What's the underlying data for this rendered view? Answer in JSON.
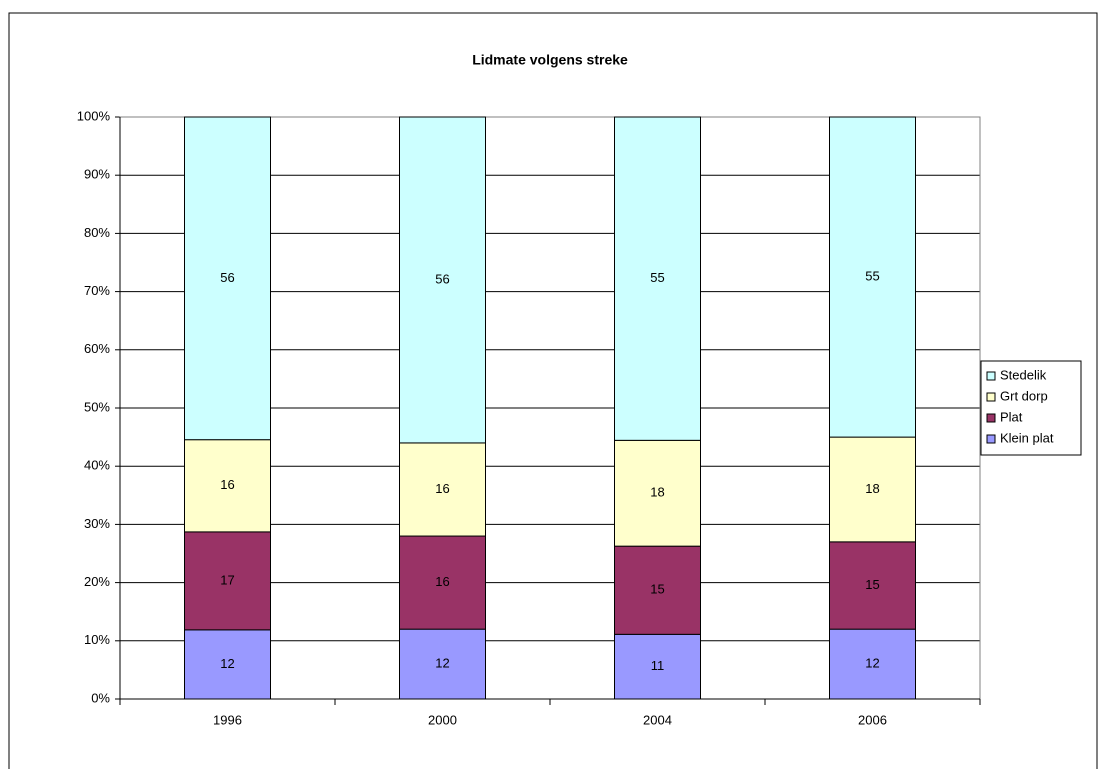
{
  "chart_data": {
    "type": "bar",
    "stacking": "percent",
    "title": "Lidmate volgens streke",
    "categories": [
      "1996",
      "2000",
      "2004",
      "2006"
    ],
    "series": [
      {
        "name": "Klein plat",
        "color": "#9999ff",
        "values": [
          12,
          12,
          11,
          12
        ]
      },
      {
        "name": "Plat",
        "color": "#993366",
        "values": [
          17,
          16,
          15,
          15
        ]
      },
      {
        "name": "Grt dorp",
        "color": "#ffffcc",
        "values": [
          16,
          16,
          18,
          18
        ]
      },
      {
        "name": "Stedelik",
        "color": "#ccffff",
        "values": [
          56,
          56,
          55,
          55
        ]
      }
    ],
    "ylim": [
      0,
      100
    ],
    "yticks": [
      {
        "value": 0,
        "label": "0%"
      },
      {
        "value": 10,
        "label": "10%"
      },
      {
        "value": 20,
        "label": "20%"
      },
      {
        "value": 30,
        "label": "30%"
      },
      {
        "value": 40,
        "label": "40%"
      },
      {
        "value": 50,
        "label": "50%"
      },
      {
        "value": 60,
        "label": "60%"
      },
      {
        "value": 70,
        "label": "70%"
      },
      {
        "value": 80,
        "label": "80%"
      },
      {
        "value": 90,
        "label": "90%"
      },
      {
        "value": 100,
        "label": "100%"
      }
    ],
    "grid": true,
    "legend": "right"
  }
}
